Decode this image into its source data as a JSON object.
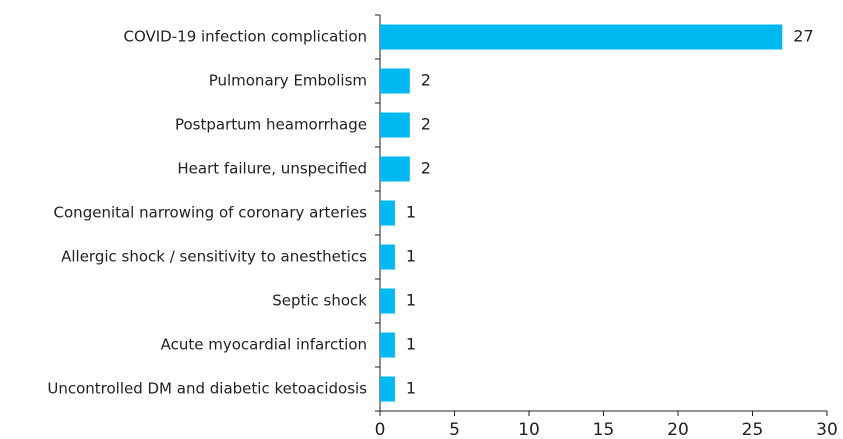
{
  "chart_data": {
    "type": "bar",
    "orientation": "horizontal",
    "categories": [
      "COVID-19 infection complication",
      "Pulmonary Embolism",
      "Postpartum heamorrhage",
      "Heart failure, unspecified",
      "Congenital narrowing of coronary arteries",
      "Allergic shock / sensitivity to anesthetics",
      "Septic shock",
      "Acute myocardial infarction",
      "Uncontrolled DM and diabetic ketoacidosis"
    ],
    "values": [
      27,
      2,
      2,
      2,
      1,
      1,
      1,
      1,
      1
    ],
    "color": "#00b9f1",
    "xlim": [
      0,
      30
    ],
    "xticks": [
      0,
      5,
      10,
      15,
      20,
      25,
      30
    ],
    "grid": false
  }
}
